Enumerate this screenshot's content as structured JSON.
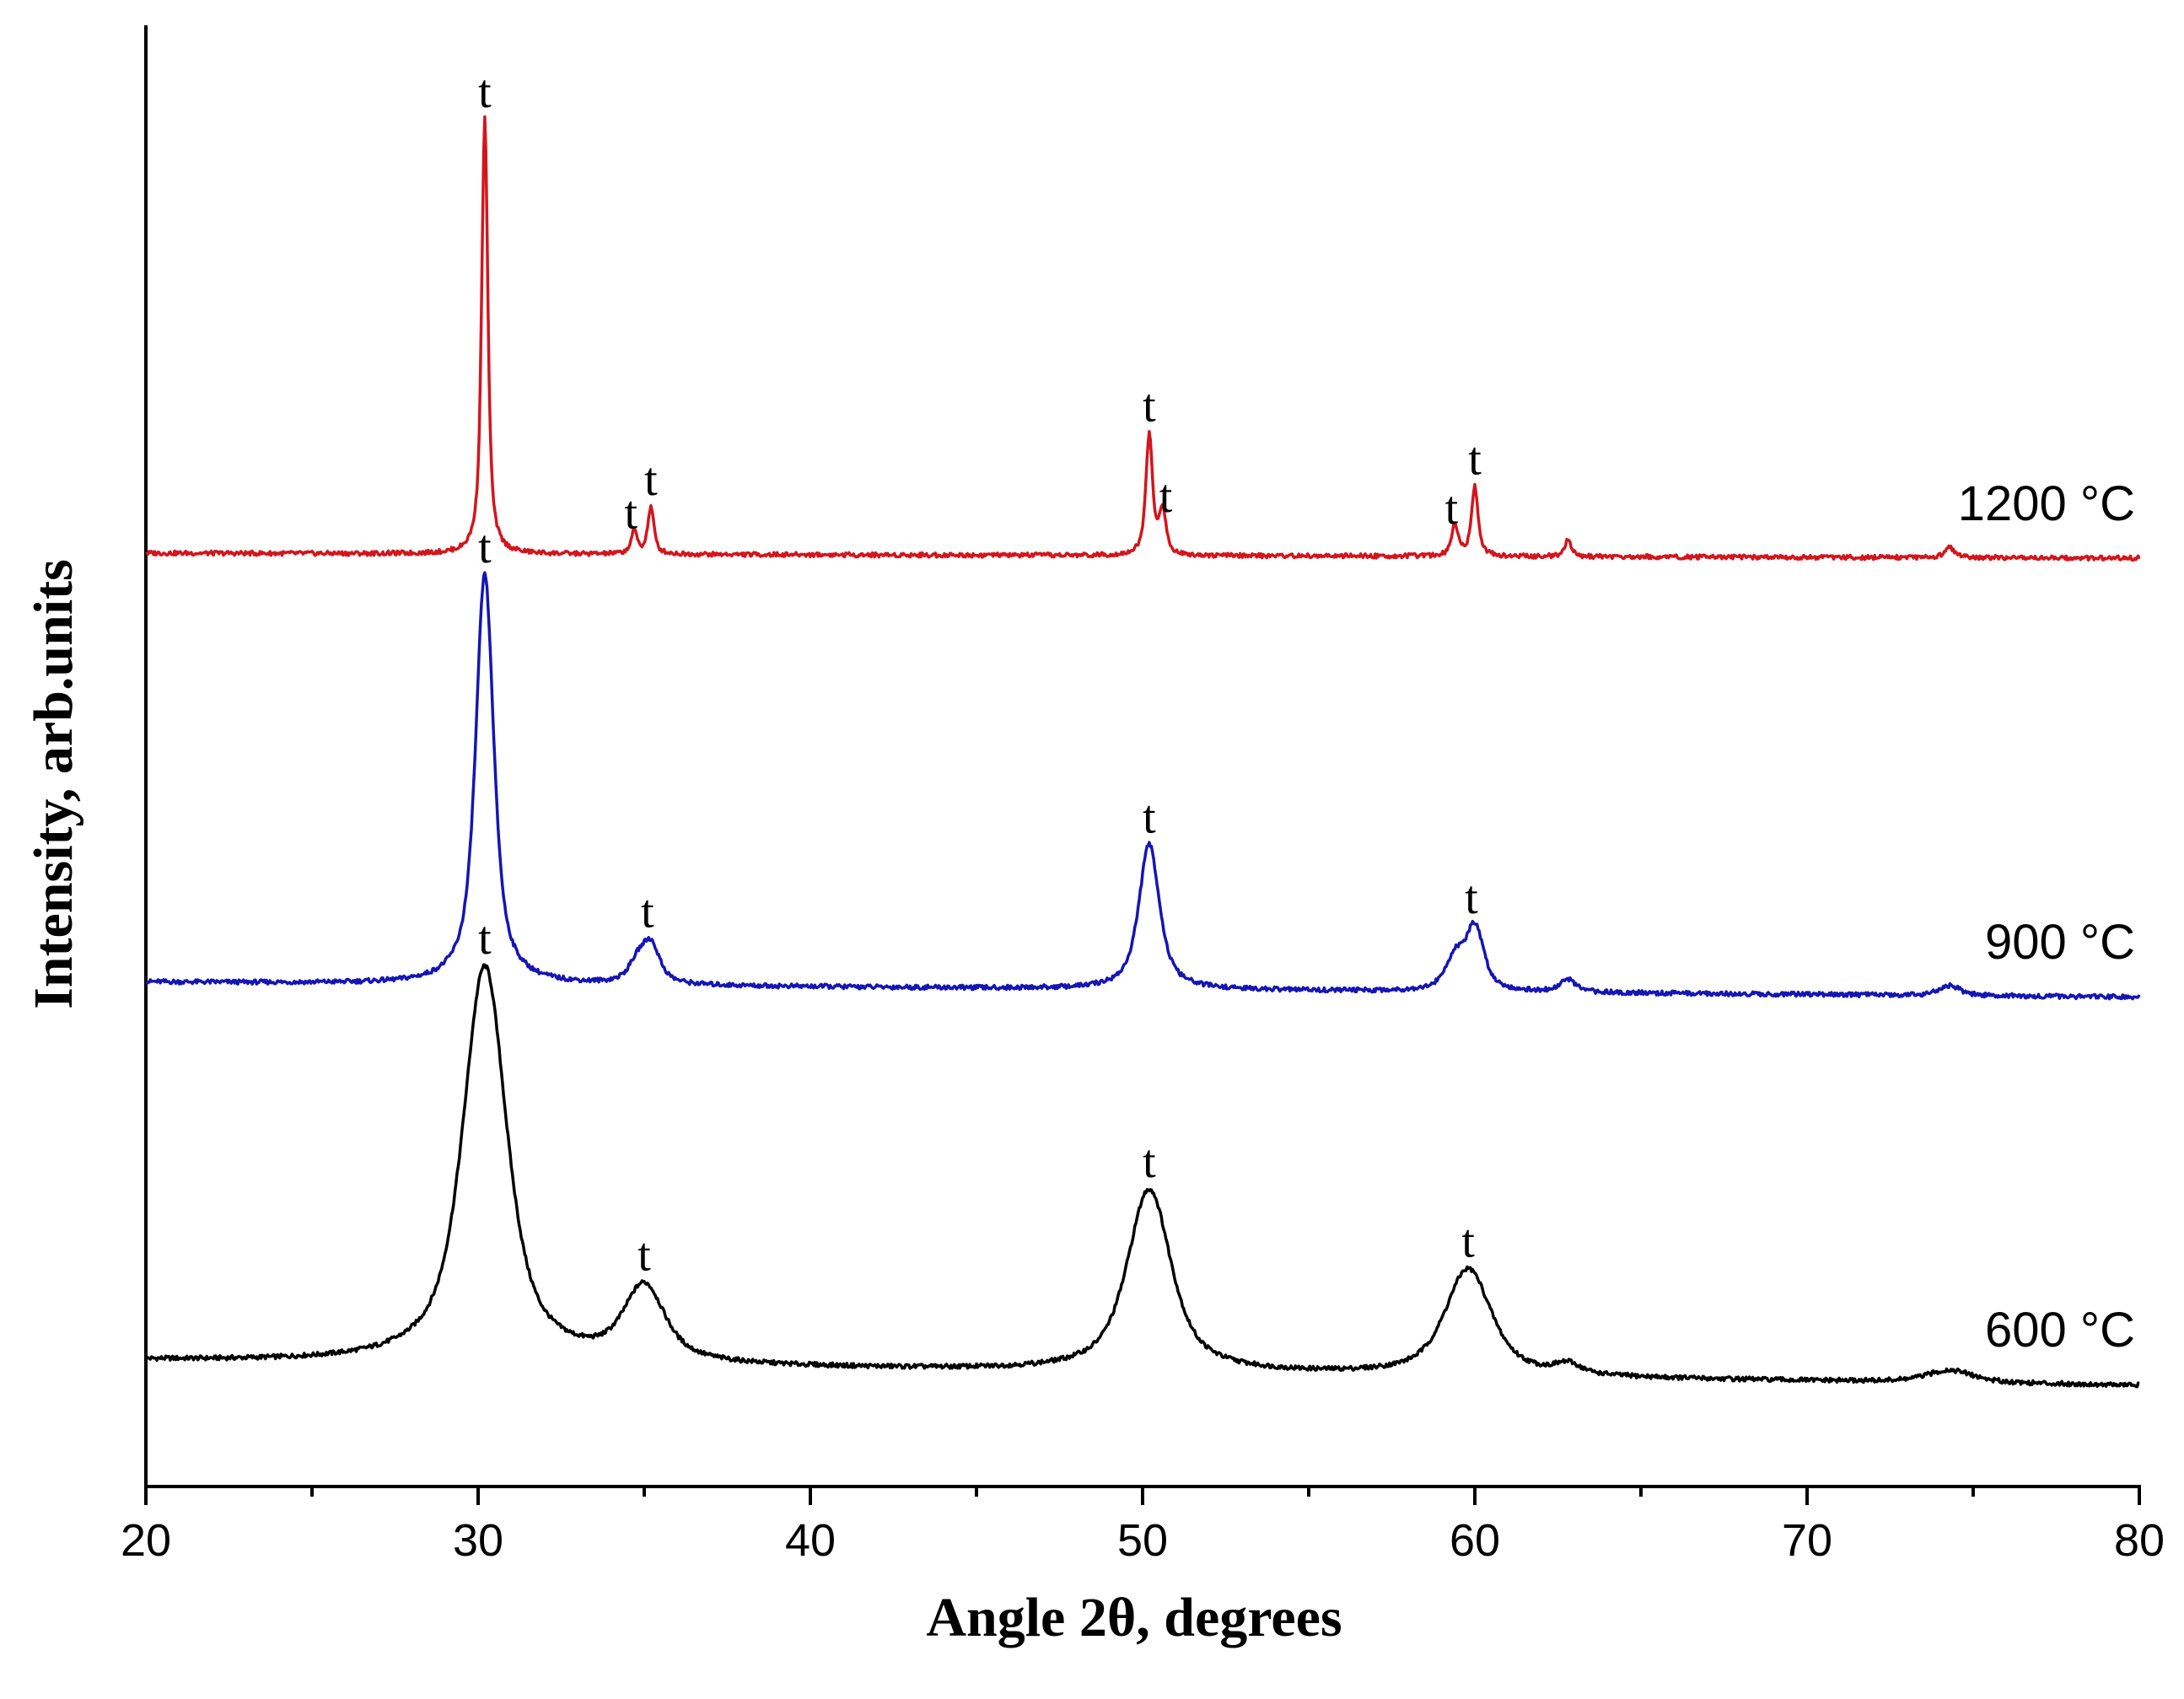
{
  "chart_data": {
    "type": "line",
    "title": "",
    "xlabel": "Angle 2θ, degrees",
    "ylabel": "Intensity, arb.units",
    "xlim": [
      20,
      80
    ],
    "ylim": [
      0,
      1.0
    ],
    "x_ticks": [
      "20",
      "30",
      "40",
      "50",
      "60",
      "70",
      "80"
    ],
    "y_ticks": [],
    "grid": false,
    "legend": "none (series labelled inline at right)",
    "colors": {
      "600": "#000000",
      "900": "#1515b4",
      "1200": "#d2161c"
    },
    "series": [
      {
        "name": "600 °C",
        "offset": 0.0,
        "baseline_start": 0.055,
        "baseline_end": 0.035,
        "peaks": [
          {
            "pos": 30.2,
            "height": 0.315,
            "width": 0.85
          },
          {
            "pos": 35.0,
            "height": 0.06,
            "width": 0.8
          },
          {
            "pos": 50.2,
            "height": 0.145,
            "width": 0.85
          },
          {
            "pos": 59.8,
            "height": 0.085,
            "width": 0.9
          },
          {
            "pos": 62.8,
            "height": 0.008,
            "width": 0.5
          },
          {
            "pos": 74.3,
            "height": 0.01,
            "width": 0.9
          }
        ],
        "peak_labels": [
          {
            "x": 30.2,
            "text": "t"
          },
          {
            "x": 35.0,
            "text": "t"
          },
          {
            "x": 50.2,
            "text": "t"
          },
          {
            "x": 59.8,
            "text": "t"
          }
        ]
      },
      {
        "name": "900 °C",
        "offset": 0.355,
        "baseline_start": 0.0,
        "baseline_end": -0.012,
        "peaks": [
          {
            "pos": 30.2,
            "height": 0.325,
            "width": 0.35
          },
          {
            "pos": 34.8,
            "height": 0.015,
            "width": 0.35
          },
          {
            "pos": 35.2,
            "height": 0.03,
            "width": 0.35
          },
          {
            "pos": 50.2,
            "height": 0.115,
            "width": 0.4
          },
          {
            "pos": 59.4,
            "height": 0.025,
            "width": 0.35
          },
          {
            "pos": 60.0,
            "height": 0.05,
            "width": 0.35
          },
          {
            "pos": 62.8,
            "height": 0.01,
            "width": 0.3
          },
          {
            "pos": 74.3,
            "height": 0.008,
            "width": 0.4
          }
        ],
        "peak_labels": [
          {
            "x": 30.2,
            "text": "t"
          },
          {
            "x": 35.1,
            "text": "t"
          },
          {
            "x": 50.2,
            "text": "t"
          },
          {
            "x": 59.9,
            "text": "t"
          }
        ]
      },
      {
        "name": "1200 °C",
        "offset": 0.695,
        "baseline_start": 0.0,
        "baseline_end": -0.004,
        "peaks": [
          {
            "pos": 30.2,
            "height": 0.345,
            "width": 0.12
          },
          {
            "pos": 34.7,
            "height": 0.018,
            "width": 0.12
          },
          {
            "pos": 35.2,
            "height": 0.037,
            "width": 0.12
          },
          {
            "pos": 50.2,
            "height": 0.095,
            "width": 0.13
          },
          {
            "pos": 50.6,
            "height": 0.035,
            "width": 0.13
          },
          {
            "pos": 59.4,
            "height": 0.025,
            "width": 0.13
          },
          {
            "pos": 60.0,
            "height": 0.055,
            "width": 0.13
          },
          {
            "pos": 62.8,
            "height": 0.013,
            "width": 0.13
          },
          {
            "pos": 74.3,
            "height": 0.008,
            "width": 0.2
          }
        ],
        "peak_labels": [
          {
            "x": 30.2,
            "text": "t"
          },
          {
            "x": 34.6,
            "text": "t"
          },
          {
            "x": 35.2,
            "text": "t"
          },
          {
            "x": 50.2,
            "text": "t"
          },
          {
            "x": 50.7,
            "text": "t"
          },
          {
            "x": 59.3,
            "text": "t"
          },
          {
            "x": 60.0,
            "text": "t"
          }
        ]
      }
    ]
  }
}
